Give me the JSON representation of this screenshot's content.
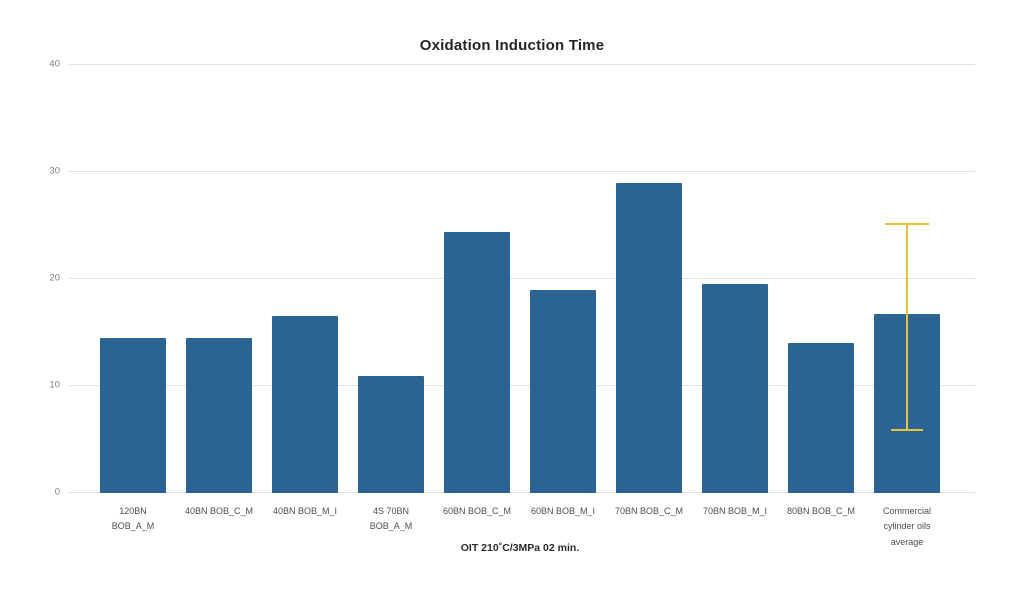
{
  "chart_data": {
    "type": "bar",
    "title": "Oxidation Induction Time",
    "xlabel": "OIT 210˚C/3MPa 02 min.",
    "ylabel": "",
    "ylim": [
      0,
      40
    ],
    "yticks": [
      0,
      10,
      20,
      30,
      40
    ],
    "grid": true,
    "legend_position": "none",
    "bar_color": "#2b6394",
    "categories": [
      "120BN BOB_A_M",
      "40BN BOB_C_M",
      "40BN BOB_M_I",
      "4S 70BN BOB_A_M",
      "60BN BOB_C_M",
      "60BN BOB_M_I",
      "70BN BOB_C_M",
      "70BN BOB_M_I",
      "80BN BOB_C_M",
      "Commercial cylinder oils average"
    ],
    "values": [
      14.5,
      14.5,
      16.5,
      10.9,
      24.4,
      19.0,
      29.0,
      19.5,
      14.0,
      16.7
    ],
    "error_bar": {
      "category_index": 9,
      "low": 5.8,
      "high": 25.2,
      "color": "#eac13b"
    }
  }
}
